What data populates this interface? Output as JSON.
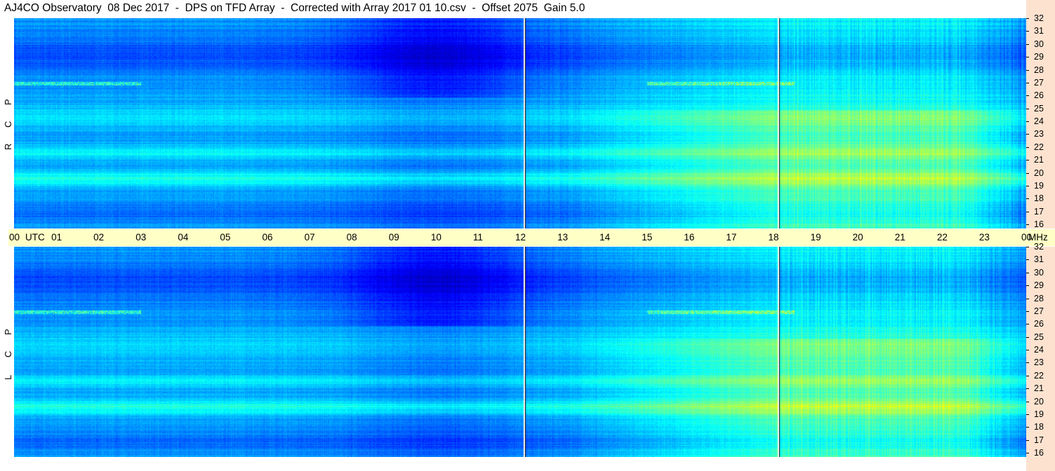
{
  "title": "AJ4CO Observatory  08 Dec 2017  -  DPS on TFD Array  -  Corrected with Array 2017 01 10.csv  -  Offset 2075  Gain 5.0",
  "colors": {
    "axis_bg": "#fde3cf",
    "timebar_bg": "#ffffc6"
  },
  "panels": [
    {
      "label_letters": [
        "R",
        "C",
        "P"
      ]
    },
    {
      "label_letters": [
        "L",
        "C",
        "P"
      ]
    }
  ],
  "chart_data": {
    "type": "heatmap",
    "x_ticks": [
      "00",
      "UTC",
      "01",
      "02",
      "03",
      "04",
      "05",
      "06",
      "07",
      "08",
      "09",
      "10",
      "11",
      "12",
      "13",
      "14",
      "15",
      "16",
      "17",
      "18",
      "19",
      "20",
      "21",
      "22",
      "23",
      "00",
      "MHz"
    ],
    "x_range_utc_hours": [
      0,
      24
    ],
    "y_ticks": [
      "32",
      "31",
      "30",
      "29",
      "28",
      "27",
      "26",
      "25",
      "24",
      "23",
      "22",
      "21",
      "20",
      "19",
      "18",
      "17",
      "16"
    ],
    "y_range_mhz": [
      16,
      32
    ],
    "marker_lines_utc": [
      12.08,
      18.1
    ],
    "series": [
      {
        "name": "RCP"
      },
      {
        "name": "LCP"
      }
    ]
  }
}
